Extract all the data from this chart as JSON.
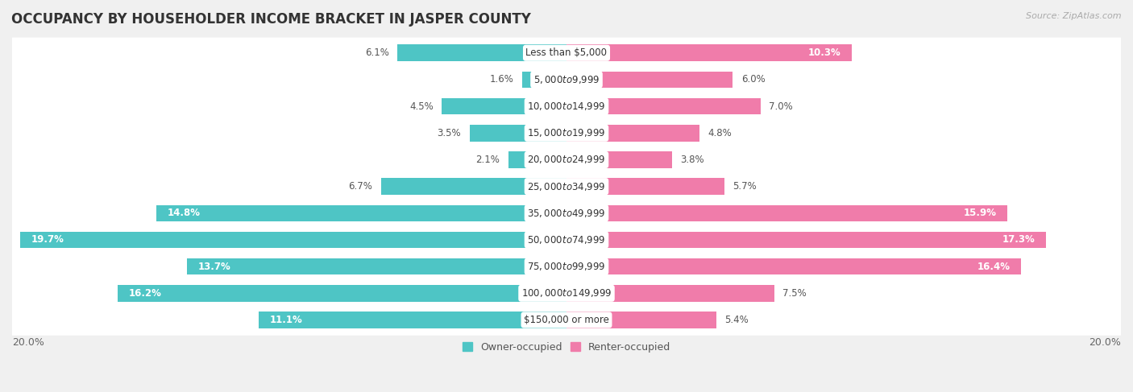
{
  "title": "OCCUPANCY BY HOUSEHOLDER INCOME BRACKET IN JASPER COUNTY",
  "source": "Source: ZipAtlas.com",
  "categories": [
    "Less than $5,000",
    "$5,000 to $9,999",
    "$10,000 to $14,999",
    "$15,000 to $19,999",
    "$20,000 to $24,999",
    "$25,000 to $34,999",
    "$35,000 to $49,999",
    "$50,000 to $74,999",
    "$75,000 to $99,999",
    "$100,000 to $149,999",
    "$150,000 or more"
  ],
  "owner_values": [
    6.1,
    1.6,
    4.5,
    3.5,
    2.1,
    6.7,
    14.8,
    19.7,
    13.7,
    16.2,
    11.1
  ],
  "renter_values": [
    10.3,
    6.0,
    7.0,
    4.8,
    3.8,
    5.7,
    15.9,
    17.3,
    16.4,
    7.5,
    5.4
  ],
  "owner_color": "#4ec5c5",
  "renter_color": "#f07caa",
  "renter_color_light": "#f5aac8",
  "axis_max": 20.0,
  "background_color": "#f0f0f0",
  "bar_bg_color": "#e8e8e8",
  "bar_white": "#ffffff",
  "title_fontsize": 12,
  "label_fontsize": 8.5,
  "tick_fontsize": 9,
  "legend_fontsize": 9,
  "source_fontsize": 8
}
